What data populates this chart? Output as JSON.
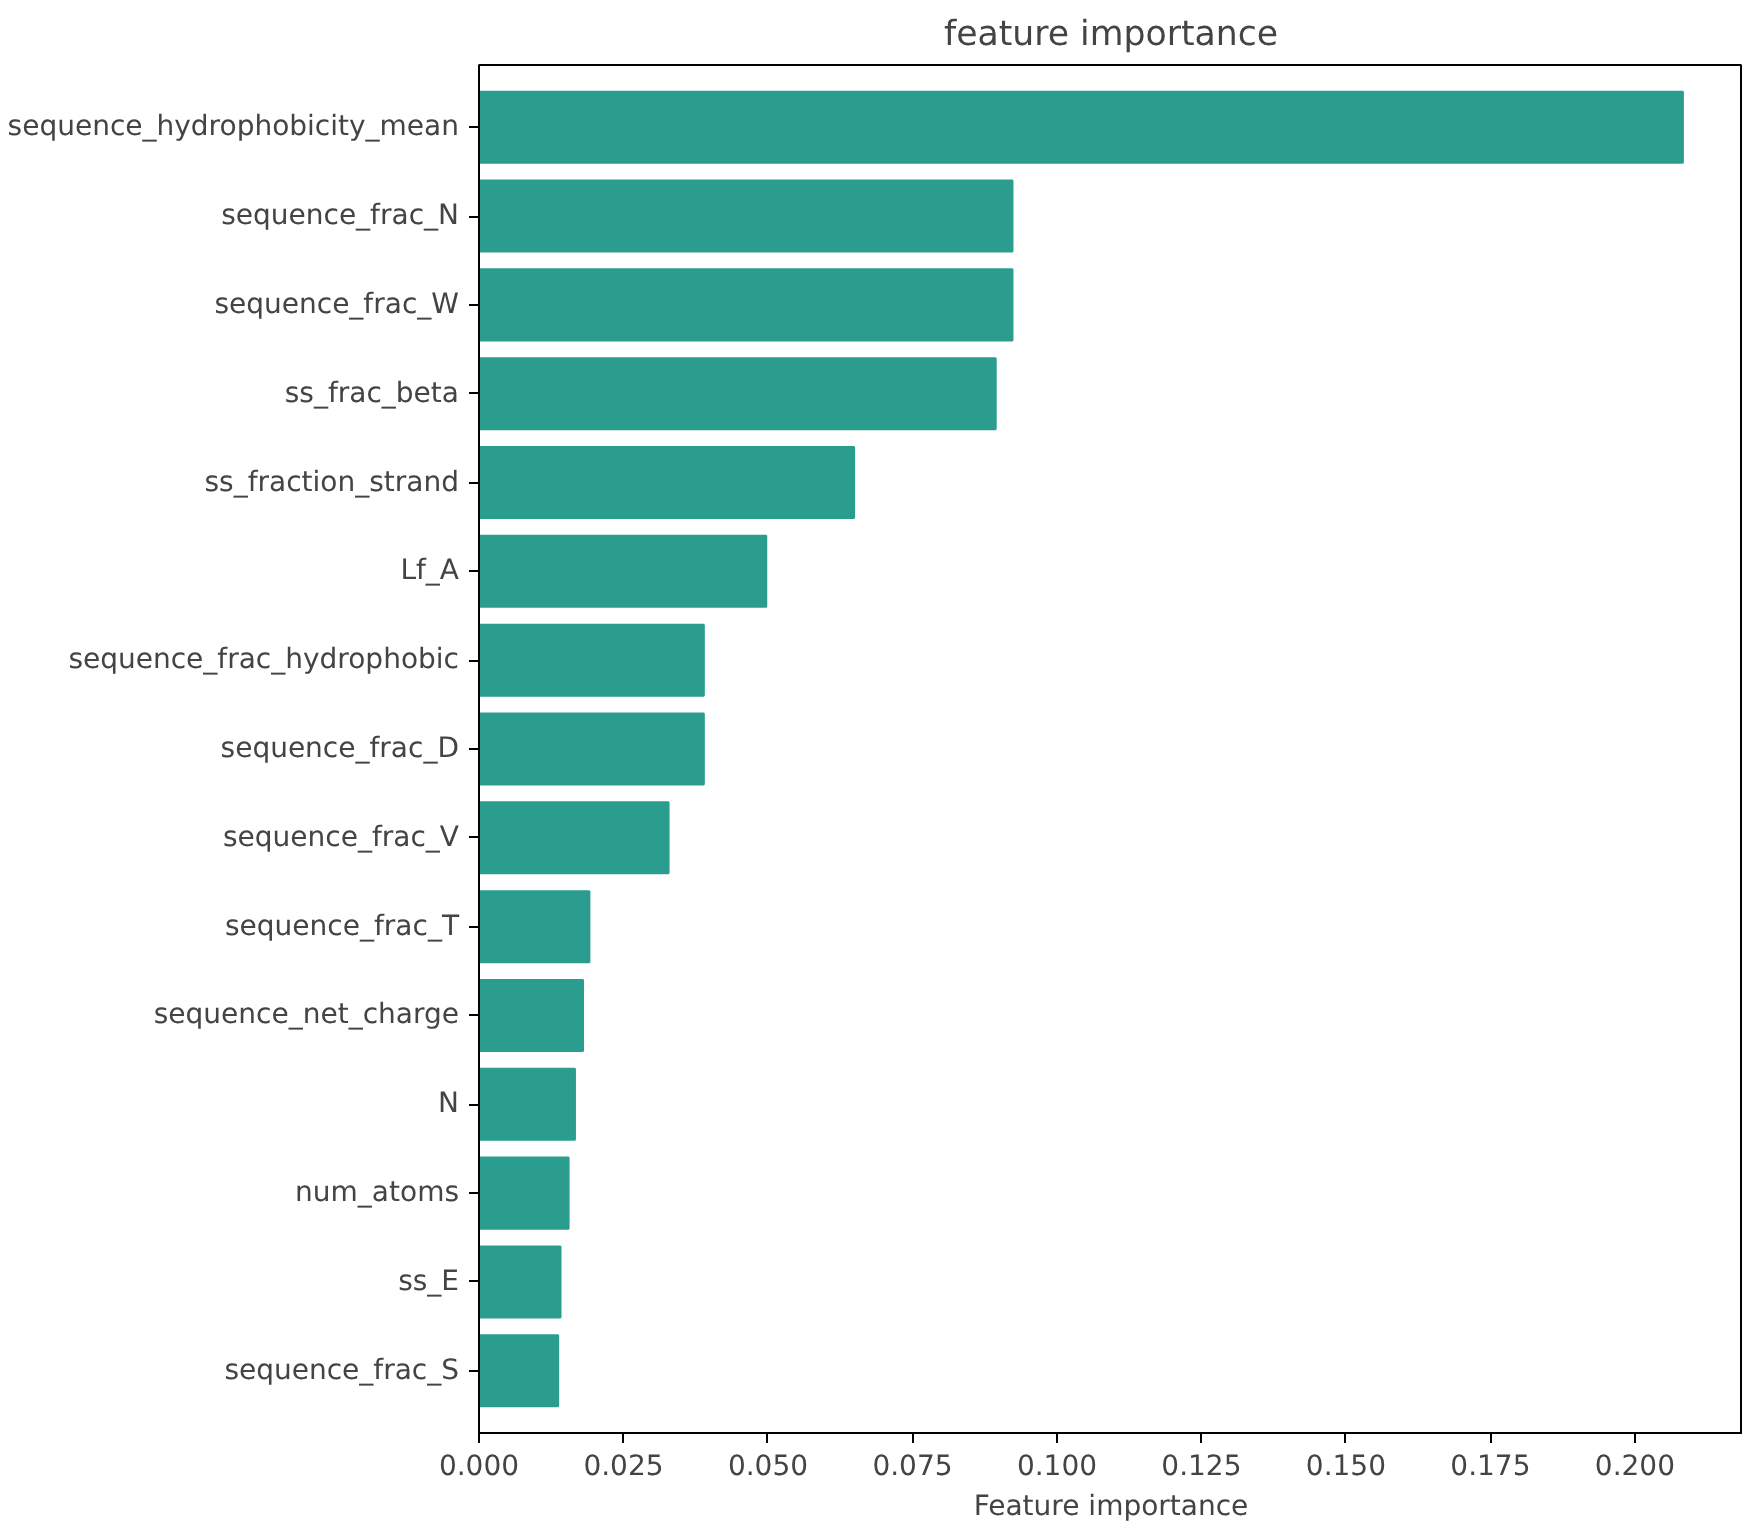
{
  "chart_data": {
    "type": "bar",
    "orientation": "horizontal",
    "title": "feature importance",
    "xlabel": "Feature importance",
    "categories": [
      "sequence_hydrophobicity_mean",
      "sequence_frac_N",
      "sequence_frac_W",
      "ss_frac_beta",
      "ss_fraction_strand",
      "Lf_A",
      "sequence_frac_hydrophobic",
      "sequence_frac_D",
      "sequence_frac_V",
      "sequence_frac_T",
      "sequence_net_charge",
      "N",
      "num_atoms",
      "ss_E",
      "sequence_frac_S"
    ],
    "values": [
      0.2083,
      0.0923,
      0.0923,
      0.0894,
      0.0649,
      0.0497,
      0.0389,
      0.0389,
      0.0328,
      0.0191,
      0.018,
      0.0166,
      0.0155,
      0.0141,
      0.0137
    ],
    "color": "#2a9d8f",
    "xlim": [
      0,
      0.2187
    ],
    "xticks": [
      {
        "value": 0,
        "label": "0.000"
      },
      {
        "value": 0.025,
        "label": "0.025"
      },
      {
        "value": 0.05,
        "label": "0.050"
      },
      {
        "value": 0.075,
        "label": "0.075"
      },
      {
        "value": 0.1,
        "label": "0.100"
      },
      {
        "value": 0.125,
        "label": "0.125"
      },
      {
        "value": 0.15,
        "label": "0.150"
      },
      {
        "value": 0.175,
        "label": "0.175"
      },
      {
        "value": 0.2,
        "label": "0.200"
      }
    ],
    "grid": false
  }
}
